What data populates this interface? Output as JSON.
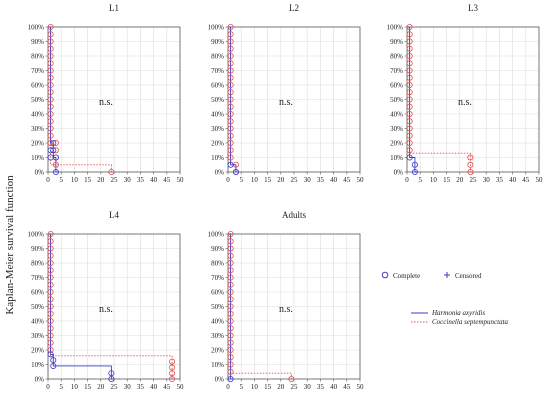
{
  "figure": {
    "ylabel": "Kaplan-Meier survival function",
    "legend": {
      "markers": [
        {
          "label": "Complete",
          "symbol": "circle"
        },
        {
          "label": "Censored",
          "symbol": "plus"
        }
      ],
      "lines": [
        {
          "label": "Harmonia axyridis",
          "color": "#3b3bc8",
          "style": "solid"
        },
        {
          "label": "Coccinella septempunctata",
          "color": "#e05050",
          "style": "dotted"
        }
      ]
    }
  },
  "chart_data": [
    {
      "type": "line",
      "title": "L1",
      "annotation": "n.s.",
      "xlim": [
        0,
        50
      ],
      "ylim": [
        0,
        100
      ],
      "xticks": [
        "0",
        "5",
        "10",
        "15",
        "20",
        "25",
        "30",
        "35",
        "40",
        "45",
        "50"
      ],
      "yticks": [
        "0%",
        "10%",
        "20%",
        "30%",
        "40%",
        "50%",
        "60%",
        "70%",
        "80%",
        "90%",
        "100%"
      ],
      "series": [
        {
          "name": "Harmonia axyridis",
          "color": "#3b3bc8",
          "style": "solid",
          "steps": [
            [
              0,
              100
            ],
            [
              1,
              100
            ],
            [
              1,
              20
            ],
            [
              2,
              20
            ],
            [
              2,
              10
            ],
            [
              3,
              10
            ],
            [
              3,
              0
            ],
            [
              4,
              0
            ]
          ],
          "points": [
            [
              1,
              15
            ],
            [
              1,
              10
            ],
            [
              2,
              20
            ],
            [
              2,
              15
            ],
            [
              3,
              10
            ],
            [
              3,
              0
            ]
          ]
        },
        {
          "name": "Coccinella septempunctata",
          "color": "#e05050",
          "style": "dotted",
          "steps": [
            [
              0,
              100
            ],
            [
              1,
              100
            ],
            [
              1,
              5
            ],
            [
              24,
              5
            ],
            [
              24,
              0
            ],
            [
              25,
              0
            ]
          ],
          "points": [
            [
              1,
              100
            ],
            [
              1,
              95
            ],
            [
              1,
              90
            ],
            [
              1,
              85
            ],
            [
              1,
              80
            ],
            [
              1,
              75
            ],
            [
              1,
              70
            ],
            [
              1,
              65
            ],
            [
              1,
              60
            ],
            [
              1,
              55
            ],
            [
              1,
              50
            ],
            [
              1,
              45
            ],
            [
              1,
              40
            ],
            [
              1,
              35
            ],
            [
              1,
              30
            ],
            [
              1,
              25
            ],
            [
              1,
              20
            ],
            [
              3,
              20
            ],
            [
              3,
              15
            ],
            [
              3,
              10
            ],
            [
              3,
              5
            ],
            [
              24,
              0
            ]
          ]
        }
      ]
    },
    {
      "type": "line",
      "title": "L2",
      "annotation": "n.s.",
      "xlim": [
        0,
        50
      ],
      "ylim": [
        0,
        100
      ],
      "xticks": [
        "0",
        "5",
        "10",
        "15",
        "20",
        "25",
        "30",
        "35",
        "40",
        "45",
        "50"
      ],
      "yticks": [
        "0%",
        "10%",
        "20%",
        "30%",
        "40%",
        "50%",
        "60%",
        "70%",
        "80%",
        "90%",
        "100%"
      ],
      "series": [
        {
          "name": "Harmonia axyridis",
          "color": "#3b3bc8",
          "style": "solid",
          "steps": [
            [
              0,
              100
            ],
            [
              1,
              100
            ],
            [
              1,
              5
            ],
            [
              3,
              5
            ],
            [
              3,
              0
            ],
            [
              4,
              0
            ]
          ],
          "points": [
            [
              1,
              5
            ],
            [
              3,
              0
            ]
          ]
        },
        {
          "name": "Coccinella septempunctata",
          "color": "#e05050",
          "style": "dotted",
          "steps": [
            [
              0,
              100
            ],
            [
              1,
              100
            ],
            [
              1,
              5
            ],
            [
              3,
              5
            ],
            [
              3,
              0
            ],
            [
              4,
              0
            ]
          ],
          "points": [
            [
              1,
              100
            ],
            [
              1,
              95
            ],
            [
              1,
              90
            ],
            [
              1,
              85
            ],
            [
              1,
              80
            ],
            [
              1,
              75
            ],
            [
              1,
              70
            ],
            [
              1,
              65
            ],
            [
              1,
              60
            ],
            [
              1,
              55
            ],
            [
              1,
              50
            ],
            [
              1,
              45
            ],
            [
              1,
              40
            ],
            [
              1,
              35
            ],
            [
              1,
              30
            ],
            [
              1,
              25
            ],
            [
              1,
              20
            ],
            [
              1,
              15
            ],
            [
              1,
              10
            ],
            [
              3,
              5
            ],
            [
              3,
              0
            ]
          ]
        }
      ]
    },
    {
      "type": "line",
      "title": "L3",
      "annotation": "n.s.",
      "xlim": [
        0,
        50
      ],
      "ylim": [
        0,
        100
      ],
      "xticks": [
        "0",
        "5",
        "10",
        "15",
        "20",
        "25",
        "30",
        "35",
        "40",
        "45",
        "50"
      ],
      "yticks": [
        "0%",
        "10%",
        "20%",
        "30%",
        "40%",
        "50%",
        "60%",
        "70%",
        "80%",
        "90%",
        "100%"
      ],
      "series": [
        {
          "name": "Harmonia axyridis",
          "color": "#3b3bc8",
          "style": "solid",
          "steps": [
            [
              0,
              100
            ],
            [
              1,
              100
            ],
            [
              1,
              10
            ],
            [
              3,
              10
            ],
            [
              3,
              0
            ],
            [
              4,
              0
            ]
          ],
          "points": [
            [
              1,
              10
            ],
            [
              3,
              5
            ],
            [
              3,
              0
            ]
          ]
        },
        {
          "name": "Coccinella septempunctata",
          "color": "#e05050",
          "style": "dotted",
          "steps": [
            [
              0,
              100
            ],
            [
              1,
              100
            ],
            [
              1,
              13
            ],
            [
              24,
              13
            ],
            [
              24,
              0
            ],
            [
              25,
              0
            ]
          ],
          "points": [
            [
              1,
              100
            ],
            [
              1,
              95
            ],
            [
              1,
              90
            ],
            [
              1,
              85
            ],
            [
              1,
              80
            ],
            [
              1,
              75
            ],
            [
              1,
              70
            ],
            [
              1,
              65
            ],
            [
              1,
              60
            ],
            [
              1,
              55
            ],
            [
              1,
              50
            ],
            [
              1,
              45
            ],
            [
              1,
              40
            ],
            [
              1,
              35
            ],
            [
              1,
              30
            ],
            [
              1,
              25
            ],
            [
              1,
              20
            ],
            [
              1,
              15
            ],
            [
              24,
              10
            ],
            [
              24,
              5
            ],
            [
              24,
              0
            ]
          ]
        }
      ]
    },
    {
      "type": "line",
      "title": "L4",
      "annotation": "n.s.",
      "xlim": [
        0,
        50
      ],
      "ylim": [
        0,
        100
      ],
      "xticks": [
        "0",
        "5",
        "10",
        "15",
        "20",
        "25",
        "30",
        "35",
        "40",
        "45",
        "50"
      ],
      "yticks": [
        "0%",
        "10%",
        "20%",
        "30%",
        "40%",
        "50%",
        "60%",
        "70%",
        "80%",
        "90%",
        "100%"
      ],
      "series": [
        {
          "name": "Harmonia axyridis",
          "color": "#3b3bc8",
          "style": "solid",
          "steps": [
            [
              0,
              100
            ],
            [
              1,
              100
            ],
            [
              1,
              17
            ],
            [
              2,
              17
            ],
            [
              2,
              9
            ],
            [
              24,
              9
            ],
            [
              24,
              0
            ],
            [
              25,
              0
            ]
          ],
          "points": [
            [
              1,
              17
            ],
            [
              2,
              13
            ],
            [
              2,
              9
            ],
            [
              24,
              4
            ],
            [
              24,
              0
            ]
          ]
        },
        {
          "name": "Coccinella septempunctata",
          "color": "#e05050",
          "style": "dotted",
          "steps": [
            [
              0,
              100
            ],
            [
              1,
              100
            ],
            [
              1,
              16
            ],
            [
              47,
              16
            ],
            [
              47,
              0
            ],
            [
              48,
              0
            ]
          ],
          "points": [
            [
              1,
              100
            ],
            [
              1,
              95
            ],
            [
              1,
              90
            ],
            [
              1,
              85
            ],
            [
              1,
              80
            ],
            [
              1,
              75
            ],
            [
              1,
              70
            ],
            [
              1,
              65
            ],
            [
              1,
              60
            ],
            [
              1,
              55
            ],
            [
              1,
              50
            ],
            [
              1,
              45
            ],
            [
              1,
              40
            ],
            [
              1,
              35
            ],
            [
              1,
              30
            ],
            [
              1,
              25
            ],
            [
              1,
              20
            ],
            [
              47,
              12
            ],
            [
              47,
              8
            ],
            [
              47,
              4
            ],
            [
              47,
              0
            ]
          ]
        }
      ]
    },
    {
      "type": "line",
      "title": "Adults",
      "annotation": "n.s.",
      "xlim": [
        0,
        50
      ],
      "ylim": [
        0,
        100
      ],
      "xticks": [
        "0",
        "5",
        "10",
        "15",
        "20",
        "25",
        "30",
        "35",
        "40",
        "45",
        "50"
      ],
      "yticks": [
        "0%",
        "10%",
        "20%",
        "30%",
        "40%",
        "50%",
        "60%",
        "70%",
        "80%",
        "90%",
        "100%"
      ],
      "series": [
        {
          "name": "Harmonia axyridis",
          "color": "#3b3bc8",
          "style": "solid",
          "steps": [
            [
              0,
              100
            ],
            [
              1,
              100
            ],
            [
              1,
              0
            ],
            [
              2,
              0
            ]
          ],
          "points": [
            [
              1,
              0
            ]
          ]
        },
        {
          "name": "Coccinella septempunctata",
          "color": "#e05050",
          "style": "dotted",
          "steps": [
            [
              0,
              100
            ],
            [
              1,
              100
            ],
            [
              1,
              4
            ],
            [
              24,
              4
            ],
            [
              24,
              0
            ],
            [
              25,
              0
            ]
          ],
          "points": [
            [
              1,
              100
            ],
            [
              1,
              95
            ],
            [
              1,
              90
            ],
            [
              1,
              85
            ],
            [
              1,
              80
            ],
            [
              1,
              75
            ],
            [
              1,
              70
            ],
            [
              1,
              65
            ],
            [
              1,
              60
            ],
            [
              1,
              55
            ],
            [
              1,
              50
            ],
            [
              1,
              45
            ],
            [
              1,
              40
            ],
            [
              1,
              35
            ],
            [
              1,
              30
            ],
            [
              1,
              25
            ],
            [
              1,
              20
            ],
            [
              1,
              15
            ],
            [
              1,
              10
            ],
            [
              1,
              5
            ],
            [
              24,
              0
            ]
          ]
        }
      ]
    }
  ]
}
